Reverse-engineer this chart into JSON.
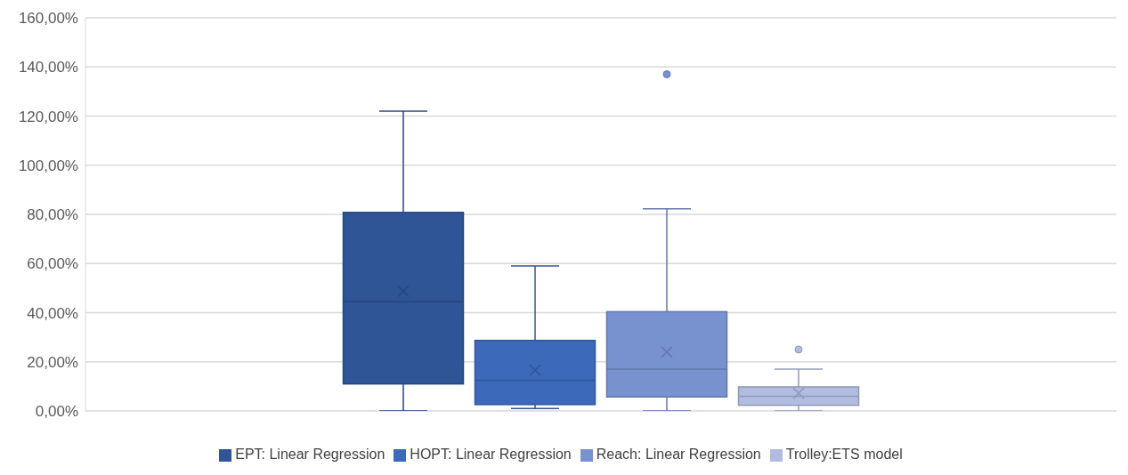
{
  "chart_data": {
    "type": "box",
    "categories": [
      null
    ],
    "series": [
      {
        "name": "EPT: Linear Regression",
        "color": "#2f5597",
        "boxes": [
          {
            "low": 0,
            "q1": 11,
            "median": 44.5,
            "q3": 80.8,
            "high": 122,
            "mean": 48.7
          }
        ]
      },
      {
        "name": "HOPT: Linear Regression",
        "color": "#3c69b9",
        "boxes": [
          {
            "low": 1,
            "q1": 2.6,
            "median": 12.5,
            "q3": 28.7,
            "high": 59,
            "mean": 16.6
          }
        ]
      },
      {
        "name": "Reach: Linear Regression",
        "color": "#7891cf",
        "boxes": [
          {
            "low": 0,
            "q1": 5.7,
            "median": 17,
            "q3": 40.4,
            "high": 82.3,
            "mean": 24,
            "outliers": [
              137
            ]
          }
        ]
      },
      {
        "name": "Trolley:ETS model",
        "color": "#b0bce0",
        "boxes": [
          {
            "low": 0,
            "q1": 2.3,
            "median": 6,
            "q3": 9.8,
            "high": 17,
            "mean": 7.2,
            "outliers": [
              25
            ]
          }
        ]
      }
    ],
    "ylim": [
      0,
      160
    ],
    "yticks": [
      {
        "value": 0,
        "label": "0,00%"
      },
      {
        "value": 20,
        "label": "20,00%"
      },
      {
        "value": 40,
        "label": "40,00%"
      },
      {
        "value": 60,
        "label": "60,00%"
      },
      {
        "value": 80,
        "label": "80,00%"
      },
      {
        "value": 100,
        "label": "100,00%"
      },
      {
        "value": 120,
        "label": "120,00%"
      },
      {
        "value": 140,
        "label": "140,00%"
      },
      {
        "value": 160,
        "label": "160,00%"
      }
    ],
    "grid": "y",
    "legend": "bottom"
  }
}
